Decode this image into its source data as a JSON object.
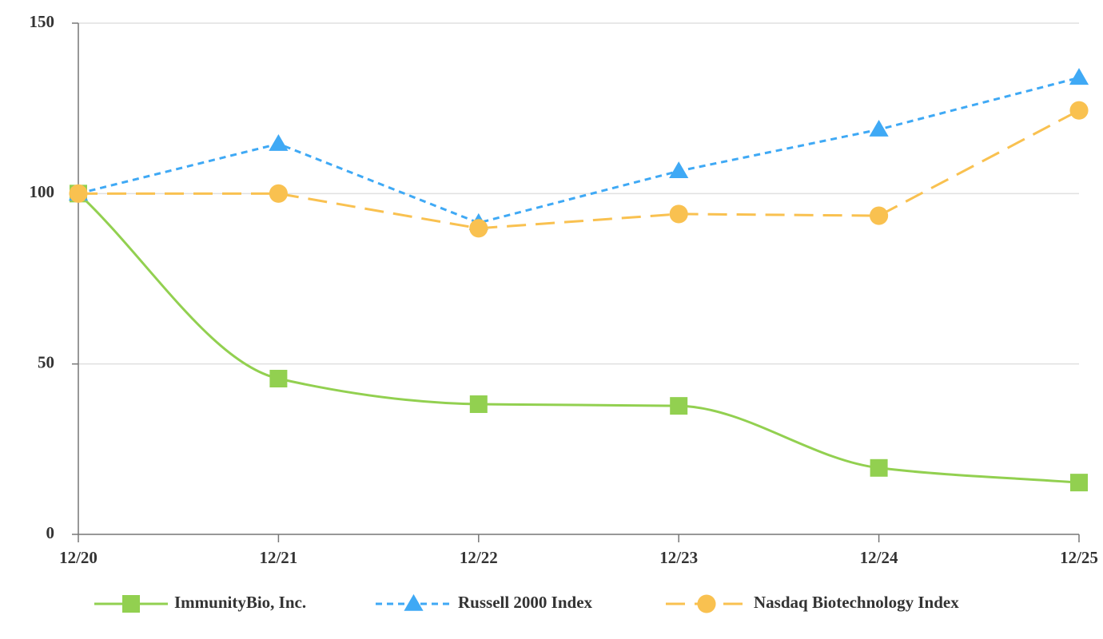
{
  "chart_data": {
    "type": "line",
    "categories": [
      "12/20",
      "12/21",
      "12/22",
      "12/23",
      "12/24",
      "12/25"
    ],
    "series": [
      {
        "name": "ImmunityBio, Inc.",
        "color": "#92d050",
        "marker": "square",
        "dash": "solid",
        "smooth": true,
        "values": [
          100,
          45.7,
          38.2,
          37.7,
          19.5,
          15.2
        ]
      },
      {
        "name": "Russell 2000 Index",
        "color": "#3fa9f5",
        "marker": "triangle",
        "dash": "short",
        "smooth": false,
        "values": [
          100,
          114.6,
          91.4,
          106.6,
          118.8,
          134
        ]
      },
      {
        "name": "Nasdaq Biotechnology Index",
        "color": "#f9c150",
        "marker": "circle",
        "dash": "long",
        "smooth": false,
        "values": [
          100,
          100,
          89.8,
          94,
          93.5,
          124.4
        ]
      }
    ],
    "ylim": [
      0,
      150
    ],
    "yticks": [
      0,
      50,
      100,
      150
    ],
    "grid": true,
    "legend": "bottom"
  }
}
